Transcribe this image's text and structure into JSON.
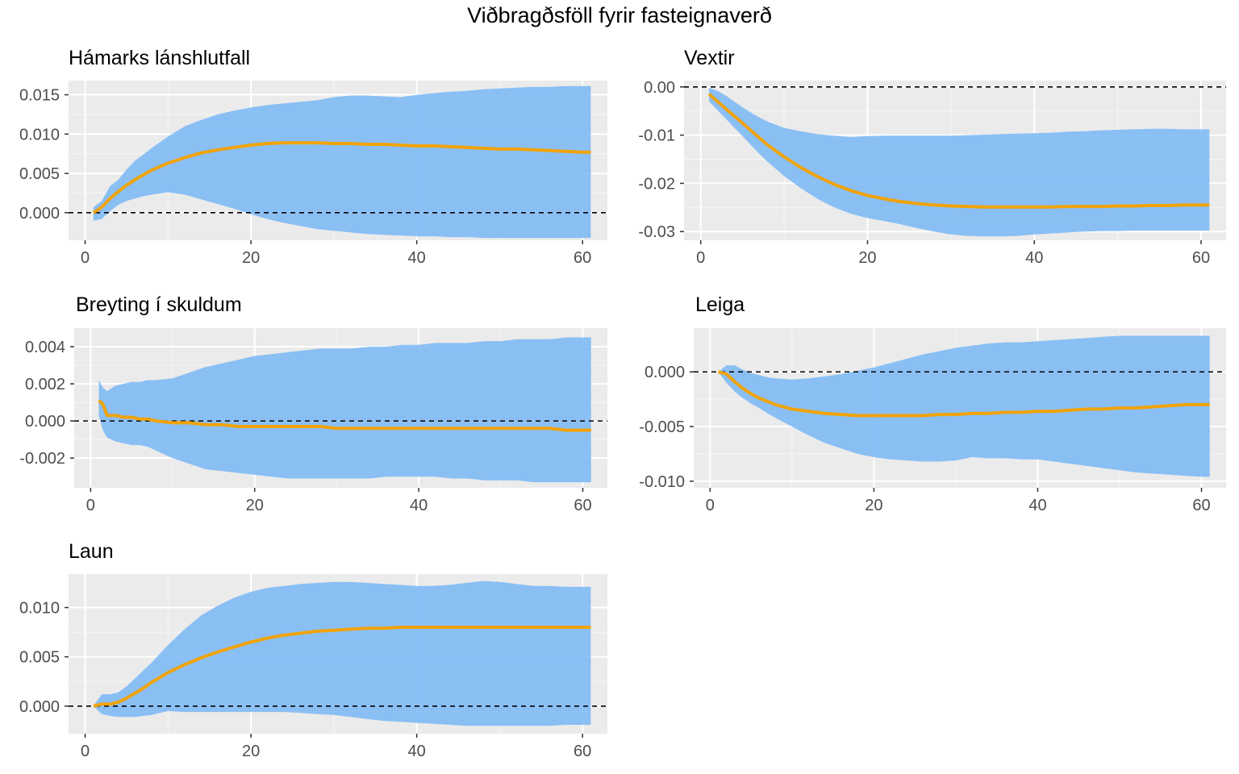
{
  "title": "Viðbragðsföll fyrir fasteignaverð",
  "colors": {
    "band": "#7fbaf5",
    "line": "#f0a30a",
    "panel_bg": "#ebebeb",
    "grid": "#ffffff",
    "zero_line": "#000000"
  },
  "chart_data": [
    {
      "type": "line",
      "title": "Hámarks lánshlutfall",
      "xlim": [
        -2,
        63
      ],
      "ylim": [
        -0.0035,
        0.0168
      ],
      "xticks": [
        0,
        20,
        40,
        60
      ],
      "xtick_labels": [
        "0",
        "20",
        "40",
        "60"
      ],
      "yticks": [
        0.0,
        0.005,
        0.01,
        0.015
      ],
      "ytick_labels": [
        "0.000",
        "0.005",
        "0.010",
        "0.015"
      ],
      "grid": true,
      "zero_line": true,
      "x": [
        1,
        2,
        3,
        4,
        5,
        6,
        7,
        8,
        10,
        12,
        14,
        16,
        18,
        20,
        22,
        24,
        26,
        28,
        30,
        32,
        34,
        36,
        38,
        40,
        42,
        44,
        46,
        48,
        50,
        52,
        54,
        56,
        58,
        60,
        61
      ],
      "series": [
        {
          "values": [
            0.0,
            0.0007,
            0.0018,
            0.0027,
            0.0035,
            0.0042,
            0.0048,
            0.0054,
            0.0063,
            0.007,
            0.0076,
            0.008,
            0.0083,
            0.0086,
            0.0088,
            0.0089,
            0.0089,
            0.0089,
            0.0088,
            0.0088,
            0.0087,
            0.0087,
            0.0086,
            0.0085,
            0.0085,
            0.0084,
            0.0083,
            0.0082,
            0.0081,
            0.0081,
            0.008,
            0.0079,
            0.0078,
            0.0077,
            0.0077
          ],
          "lower": [
            -0.001,
            -0.0008,
            0.0002,
            0.001,
            0.0015,
            0.0018,
            0.0021,
            0.0023,
            0.0026,
            0.0023,
            0.0017,
            0.0011,
            0.0005,
            -0.0002,
            -0.0008,
            -0.0013,
            -0.0017,
            -0.0021,
            -0.0023,
            -0.0025,
            -0.0027,
            -0.0028,
            -0.0029,
            -0.003,
            -0.003,
            -0.0031,
            -0.0031,
            -0.0032,
            -0.0032,
            -0.0032,
            -0.0032,
            -0.0032,
            -0.0032,
            -0.0032,
            -0.0032
          ],
          "upper": [
            0.0007,
            0.0015,
            0.0034,
            0.0042,
            0.0055,
            0.0066,
            0.0074,
            0.0082,
            0.0097,
            0.011,
            0.0118,
            0.0125,
            0.013,
            0.0134,
            0.0137,
            0.0139,
            0.0141,
            0.0143,
            0.0147,
            0.0149,
            0.0149,
            0.0148,
            0.0147,
            0.015,
            0.0152,
            0.0154,
            0.0155,
            0.0157,
            0.0158,
            0.0159,
            0.016,
            0.016,
            0.0161,
            0.0161,
            0.0161
          ]
        }
      ]
    },
    {
      "type": "line",
      "title": "Vextir",
      "xlim": [
        -2,
        63
      ],
      "ylim": [
        -0.0318,
        0.0013
      ],
      "xticks": [
        0,
        20,
        40,
        60
      ],
      "xtick_labels": [
        "0",
        "20",
        "40",
        "60"
      ],
      "yticks": [
        0.0,
        -0.01,
        -0.02,
        -0.03
      ],
      "ytick_labels": [
        "0.00",
        "-0.01",
        "-0.02",
        "-0.03"
      ],
      "grid": true,
      "zero_line": true,
      "x": [
        1,
        2,
        3,
        4,
        5,
        6,
        7,
        8,
        10,
        12,
        14,
        16,
        18,
        20,
        22,
        24,
        26,
        28,
        30,
        32,
        34,
        36,
        38,
        40,
        42,
        44,
        46,
        48,
        50,
        52,
        54,
        56,
        58,
        60,
        61
      ],
      "series": [
        {
          "values": [
            -0.0015,
            -0.003,
            -0.0045,
            -0.006,
            -0.0075,
            -0.009,
            -0.0105,
            -0.012,
            -0.0145,
            -0.0167,
            -0.0186,
            -0.0202,
            -0.0215,
            -0.0225,
            -0.0232,
            -0.0238,
            -0.0242,
            -0.0245,
            -0.0247,
            -0.0248,
            -0.0249,
            -0.0249,
            -0.0249,
            -0.0249,
            -0.0249,
            -0.0248,
            -0.0248,
            -0.0248,
            -0.0247,
            -0.0247,
            -0.0246,
            -0.0246,
            -0.0245,
            -0.0245,
            -0.0245
          ],
          "lower": [
            -0.003,
            -0.0048,
            -0.0066,
            -0.0084,
            -0.0102,
            -0.012,
            -0.0138,
            -0.0155,
            -0.0185,
            -0.021,
            -0.0232,
            -0.025,
            -0.0263,
            -0.0272,
            -0.0278,
            -0.0285,
            -0.0293,
            -0.03,
            -0.0306,
            -0.0309,
            -0.031,
            -0.031,
            -0.0309,
            -0.0306,
            -0.0304,
            -0.0302,
            -0.03,
            -0.0299,
            -0.0299,
            -0.0298,
            -0.0298,
            -0.0298,
            -0.0298,
            -0.0298,
            -0.0298
          ],
          "upper": [
            -0.0002,
            -0.0008,
            -0.0018,
            -0.003,
            -0.0042,
            -0.0053,
            -0.0063,
            -0.0072,
            -0.0085,
            -0.0092,
            -0.0098,
            -0.0101,
            -0.0104,
            -0.0102,
            -0.0101,
            -0.0101,
            -0.0101,
            -0.0101,
            -0.0101,
            -0.01,
            -0.0099,
            -0.0098,
            -0.0097,
            -0.0096,
            -0.0095,
            -0.0093,
            -0.0092,
            -0.009,
            -0.0089,
            -0.0088,
            -0.0087,
            -0.0087,
            -0.0088,
            -0.0088,
            -0.0088
          ]
        }
      ]
    },
    {
      "type": "line",
      "title": "Breyting í skuldum",
      "xlim": [
        -2,
        63
      ],
      "ylim": [
        -0.0036,
        0.005
      ],
      "xticks": [
        0,
        20,
        40,
        60
      ],
      "xtick_labels": [
        "0",
        "20",
        "40",
        "60"
      ],
      "yticks": [
        0.004,
        0.002,
        0.0,
        -0.002
      ],
      "ytick_labels": [
        "0.004",
        "0.002",
        "0.000",
        "-0.002"
      ],
      "grid": true,
      "zero_line": true,
      "x": [
        1,
        1.5,
        2,
        3,
        4,
        5,
        6,
        7,
        8,
        10,
        12,
        14,
        16,
        18,
        20,
        22,
        24,
        26,
        28,
        30,
        32,
        34,
        36,
        38,
        40,
        42,
        44,
        46,
        48,
        50,
        52,
        54,
        56,
        58,
        60,
        61
      ],
      "series": [
        {
          "values": [
            0.0011,
            0.0009,
            0.0003,
            0.0003,
            0.0002,
            0.0002,
            0.0001,
            0.0001,
            0.0,
            -0.0001,
            -0.0001,
            -0.0002,
            -0.0002,
            -0.0003,
            -0.0003,
            -0.0003,
            -0.0003,
            -0.0003,
            -0.0003,
            -0.0004,
            -0.0004,
            -0.0004,
            -0.0004,
            -0.0004,
            -0.0004,
            -0.0004,
            -0.0004,
            -0.0004,
            -0.0004,
            -0.0004,
            -0.0004,
            -0.0004,
            -0.0004,
            -0.0005,
            -0.0005,
            -0.0005
          ],
          "lower": [
            0.0003,
            -0.0005,
            -0.0009,
            -0.0011,
            -0.0012,
            -0.0013,
            -0.0013,
            -0.0014,
            -0.0016,
            -0.002,
            -0.0023,
            -0.0026,
            -0.0027,
            -0.0028,
            -0.0029,
            -0.003,
            -0.0031,
            -0.0031,
            -0.0031,
            -0.0031,
            -0.0031,
            -0.0031,
            -0.003,
            -0.003,
            -0.003,
            -0.003,
            -0.0031,
            -0.0031,
            -0.0032,
            -0.0032,
            -0.0032,
            -0.0033,
            -0.0033,
            -0.0033,
            -0.0033,
            -0.0033
          ],
          "upper": [
            0.0022,
            0.0018,
            0.0016,
            0.0019,
            0.002,
            0.0021,
            0.0021,
            0.0022,
            0.0022,
            0.0023,
            0.0026,
            0.0029,
            0.0031,
            0.0033,
            0.0035,
            0.0036,
            0.0037,
            0.0038,
            0.0039,
            0.0039,
            0.0039,
            0.004,
            0.004,
            0.0041,
            0.0041,
            0.0042,
            0.0042,
            0.0042,
            0.0043,
            0.0043,
            0.0044,
            0.0044,
            0.0044,
            0.0045,
            0.0045,
            0.0045
          ]
        }
      ]
    },
    {
      "type": "line",
      "title": "Leiga",
      "xlim": [
        -2,
        63
      ],
      "ylim": [
        -0.0106,
        0.004
      ],
      "xticks": [
        0,
        20,
        40,
        60
      ],
      "xtick_labels": [
        "0",
        "20",
        "40",
        "60"
      ],
      "yticks": [
        0.0,
        -0.005,
        -0.01
      ],
      "ytick_labels": [
        "0.000",
        "-0.005",
        "-0.010"
      ],
      "grid": true,
      "zero_line": true,
      "x": [
        1,
        2,
        3,
        4,
        5,
        6,
        7,
        8,
        10,
        12,
        14,
        16,
        18,
        20,
        22,
        24,
        26,
        28,
        30,
        32,
        34,
        36,
        38,
        40,
        42,
        44,
        46,
        48,
        50,
        52,
        54,
        56,
        58,
        60,
        61
      ],
      "series": [
        {
          "values": [
            0.0,
            -0.0002,
            -0.0009,
            -0.0015,
            -0.002,
            -0.0024,
            -0.0027,
            -0.003,
            -0.0034,
            -0.0036,
            -0.0038,
            -0.0039,
            -0.004,
            -0.004,
            -0.004,
            -0.004,
            -0.004,
            -0.0039,
            -0.0039,
            -0.0038,
            -0.0038,
            -0.0037,
            -0.0037,
            -0.0036,
            -0.0036,
            -0.0035,
            -0.0034,
            -0.0034,
            -0.0033,
            -0.0033,
            -0.0032,
            -0.0031,
            -0.003,
            -0.003,
            -0.003
          ],
          "lower": [
            0.0,
            -0.001,
            -0.0018,
            -0.0024,
            -0.0029,
            -0.0033,
            -0.0038,
            -0.0042,
            -0.005,
            -0.0058,
            -0.0065,
            -0.007,
            -0.0075,
            -0.0078,
            -0.008,
            -0.0081,
            -0.0082,
            -0.0082,
            -0.0081,
            -0.0078,
            -0.0079,
            -0.0079,
            -0.008,
            -0.008,
            -0.0082,
            -0.0084,
            -0.0086,
            -0.0088,
            -0.009,
            -0.0092,
            -0.0093,
            -0.0094,
            -0.0095,
            -0.0096,
            -0.0096
          ],
          "upper": [
            0.0,
            0.0006,
            0.0006,
            0.0002,
            -0.0001,
            -0.0003,
            -0.0005,
            -0.0006,
            -0.0007,
            -0.0006,
            -0.0004,
            -0.0002,
            0.0001,
            0.0004,
            0.0008,
            0.0012,
            0.0016,
            0.0019,
            0.0022,
            0.0024,
            0.0026,
            0.0027,
            0.0027,
            0.0028,
            0.0029,
            0.003,
            0.0031,
            0.0032,
            0.0033,
            0.0033,
            0.0033,
            0.0033,
            0.0033,
            0.0033,
            0.0033
          ]
        }
      ]
    },
    {
      "type": "line",
      "title": "Laun",
      "xlim": [
        -2,
        63
      ],
      "ylim": [
        -0.0028,
        0.0134
      ],
      "xticks": [
        0,
        20,
        40,
        60
      ],
      "xtick_labels": [
        "0",
        "20",
        "40",
        "60"
      ],
      "yticks": [
        0.01,
        0.005,
        0.0
      ],
      "ytick_labels": [
        "0.010",
        "0.005",
        "0.000"
      ],
      "grid": true,
      "zero_line": true,
      "x": [
        1,
        2,
        3,
        4,
        5,
        6,
        7,
        8,
        10,
        12,
        14,
        16,
        18,
        20,
        22,
        24,
        26,
        28,
        30,
        32,
        34,
        36,
        38,
        40,
        42,
        44,
        46,
        48,
        50,
        52,
        54,
        56,
        58,
        60,
        61
      ],
      "series": [
        {
          "values": [
            0.0,
            0.0002,
            0.0002,
            0.0004,
            0.0008,
            0.0013,
            0.0018,
            0.0024,
            0.0034,
            0.0042,
            0.0049,
            0.0055,
            0.006,
            0.0065,
            0.0069,
            0.0072,
            0.0074,
            0.0076,
            0.0077,
            0.0078,
            0.0079,
            0.0079,
            0.008,
            0.008,
            0.008,
            0.008,
            0.008,
            0.008,
            0.008,
            0.008,
            0.008,
            0.008,
            0.008,
            0.008,
            0.008
          ],
          "lower": [
            0.0,
            -0.0008,
            -0.001,
            -0.0011,
            -0.0011,
            -0.0011,
            -0.001,
            -0.0009,
            -0.0005,
            -0.0006,
            -0.0006,
            -0.0006,
            -0.0006,
            -0.0006,
            -0.0006,
            -0.0006,
            -0.0007,
            -0.0008,
            -0.0009,
            -0.0011,
            -0.0013,
            -0.0015,
            -0.0016,
            -0.0017,
            -0.0018,
            -0.0019,
            -0.002,
            -0.002,
            -0.002,
            -0.002,
            -0.002,
            -0.002,
            -0.0019,
            -0.0019,
            -0.0019
          ],
          "upper": [
            0.0,
            0.0012,
            0.0012,
            0.0014,
            0.002,
            0.0028,
            0.0036,
            0.0044,
            0.0062,
            0.0078,
            0.0092,
            0.0102,
            0.011,
            0.0116,
            0.012,
            0.0122,
            0.0124,
            0.0125,
            0.0126,
            0.0126,
            0.0125,
            0.0124,
            0.0123,
            0.0122,
            0.0122,
            0.0123,
            0.0125,
            0.0127,
            0.0126,
            0.0124,
            0.0122,
            0.0122,
            0.0121,
            0.0121,
            0.0121
          ]
        }
      ]
    }
  ]
}
